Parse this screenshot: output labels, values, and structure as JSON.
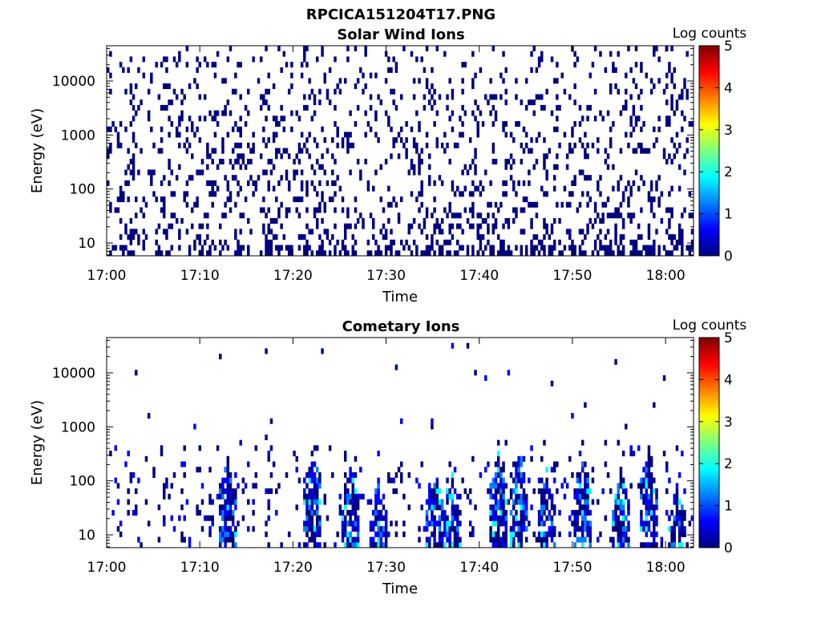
{
  "figure": {
    "title": "RPCICA151204T17.PNG"
  },
  "colormap": [
    "#00007f",
    "#0000ff",
    "#007fff",
    "#00ffff",
    "#7fff7f",
    "#ffff00",
    "#ff7f00",
    "#ff0000",
    "#7f0000"
  ],
  "chart_data": [
    {
      "type": "heatmap",
      "title": "Solar Wind Ions",
      "xlabel": "Time",
      "ylabel": "Energy (eV)",
      "x_ticks": [
        "17:00",
        "17:10",
        "17:20",
        "17:30",
        "17:40",
        "17:50",
        "18:00"
      ],
      "xlim": [
        "17:00",
        "18:03"
      ],
      "y_ticks": [
        "10",
        "100",
        "1000",
        "10000"
      ],
      "y_scale": "log",
      "ylim": [
        5.8,
        45000
      ],
      "colorbar": {
        "label": "Log counts",
        "ticks": [
          "0",
          "1",
          "2",
          "3",
          "4",
          "5"
        ],
        "range": [
          0,
          5
        ]
      },
      "description_values": {
        "count_level": 0.3,
        "energy_range_eV": [
          5.8,
          45000
        ]
      }
    },
    {
      "type": "heatmap",
      "title": "Cometary Ions",
      "xlabel": "Time",
      "ylabel": "Energy (eV)",
      "x_ticks": [
        "17:00",
        "17:10",
        "17:20",
        "17:30",
        "17:40",
        "17:50",
        "18:00"
      ],
      "xlim": [
        "17:00",
        "18:03"
      ],
      "y_ticks": [
        "10",
        "100",
        "1000",
        "10000"
      ],
      "y_scale": "log",
      "ylim": [
        5.8,
        45000
      ],
      "colorbar": {
        "label": "Log counts",
        "ticks": [
          "0",
          "1",
          "2",
          "3",
          "4",
          "5"
        ],
        "range": [
          0,
          5
        ]
      },
      "bursts": [
        {
          "time": "17:13",
          "peak_eV": 300
        },
        {
          "time": "17:22",
          "peak_eV": 450
        },
        {
          "time": "17:26",
          "peak_eV": 200
        },
        {
          "time": "17:29",
          "peak_eV": 100
        },
        {
          "time": "17:35",
          "peak_eV": 200
        },
        {
          "time": "17:37",
          "peak_eV": 150
        },
        {
          "time": "17:42",
          "peak_eV": 400
        },
        {
          "time": "17:44",
          "peak_eV": 350
        },
        {
          "time": "17:47",
          "peak_eV": 150
        },
        {
          "time": "17:51",
          "peak_eV": 300
        },
        {
          "time": "17:55",
          "peak_eV": 200
        },
        {
          "time": "17:58",
          "peak_eV": 400
        },
        {
          "time": "18:01",
          "peak_eV": 100
        }
      ]
    }
  ]
}
